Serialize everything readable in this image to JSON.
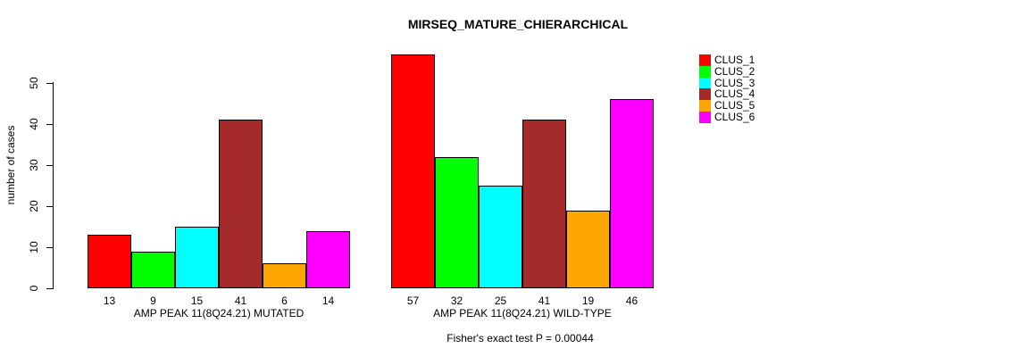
{
  "chart_data": {
    "type": "bar",
    "title": "MIRSEQ_MATURE_CHIERARCHICAL",
    "ylabel": "number of cases",
    "yticks": [
      0,
      10,
      20,
      30,
      40,
      50
    ],
    "ylim": [
      0,
      57
    ],
    "grid": false,
    "legend_position": "top-right",
    "bar_value_labels_shown": true,
    "categories": [
      "AMP PEAK 11(8Q24.21) MUTATED",
      "AMP PEAK 11(8Q24.21) WILD-TYPE"
    ],
    "series": [
      {
        "name": "CLUS_1",
        "color": "#FF0000",
        "values": [
          13,
          57
        ]
      },
      {
        "name": "CLUS_2",
        "color": "#00FF00",
        "values": [
          9,
          32
        ]
      },
      {
        "name": "CLUS_3",
        "color": "#00FFFF",
        "values": [
          15,
          25
        ]
      },
      {
        "name": "CLUS_4",
        "color": "#A52A2A",
        "values": [
          41,
          41
        ]
      },
      {
        "name": "CLUS_5",
        "color": "#FFA500",
        "values": [
          6,
          19
        ]
      },
      {
        "name": "CLUS_6",
        "color": "#FF00FF",
        "values": [
          14,
          46
        ]
      }
    ],
    "annotation": "Fisher's exact test P = 0.00044",
    "axis_color": "#000000",
    "bar_border_color": "#000000",
    "background_color": "#FFFFFF"
  }
}
